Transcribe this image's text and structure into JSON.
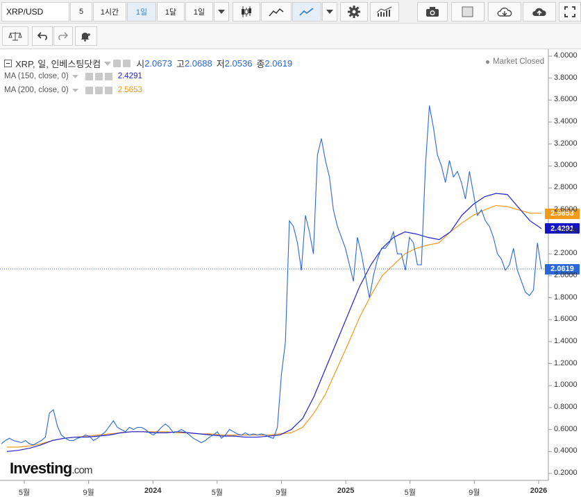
{
  "toolbar": {
    "symbol": "XRP/USD",
    "intervals": [
      "5",
      "1시간",
      "1일",
      "1달",
      "1일"
    ],
    "active_interval_index": 2,
    "icons": [
      "dropdown-icon",
      "candlestick-icon",
      "mountain-icon",
      "line-chart-icon",
      "dropdown-icon",
      "gear-icon",
      "indicators-icon",
      "camera-icon",
      "color-box-icon",
      "dropdown-icon",
      "cloud-download-icon",
      "cloud-upload-icon",
      "fullscreen-icon"
    ]
  },
  "toolbar2": {
    "icons": [
      "balance-scale-icon",
      "undo-icon",
      "redo-icon",
      "alert-bell-icon"
    ]
  },
  "legend": {
    "main_title": "XRP, 일, 인베스팅닷컴",
    "open_label": "시",
    "open_value": "2.0673",
    "high_label": "고",
    "high_value": "2.0688",
    "low_label": "저",
    "low_value": "2.0536",
    "close_label": "종",
    "close_value": "2.0619",
    "ma150_label": "MA (150, close, 0)",
    "ma150_value": "2.4291",
    "ma200_label": "MA (200, close, 0)",
    "ma200_value": "2.5653",
    "market_status": "Market Closed"
  },
  "brand": "Investing",
  "brand_suffix": ".com",
  "colors": {
    "price_line": "#2a67d8",
    "ma150": "#1f1fd1",
    "ma200": "#f39a1a",
    "last_price_tag": "#2a67d8",
    "ma150_tag": "#1414c8",
    "ma200_tag": "#f39a1a"
  },
  "chart_data": {
    "type": "line",
    "y_ticks": [
      "4.0000",
      "3.8000",
      "3.6000",
      "3.4000",
      "3.2000",
      "3.0000",
      "2.8000",
      "2.6000",
      "2.4000",
      "2.2000",
      "2.0000",
      "1.8000",
      "1.6000",
      "1.4000",
      "1.2000",
      "1.0000",
      "0.8000",
      "0.6000",
      "0.4000",
      "0.2000"
    ],
    "ylim": [
      0.2,
      4.0
    ],
    "x_ticks": [
      "5월",
      "9월",
      "2024",
      "5월",
      "9월",
      "2025",
      "5월",
      "9월",
      "2026"
    ],
    "last_price": "2.0619",
    "ma150_last": "2.4291",
    "ma200_last": "2.5653",
    "series": [
      {
        "name": "XRP",
        "values": [
          0.47,
          0.5,
          0.52,
          0.5,
          0.49,
          0.48,
          0.5,
          0.47,
          0.46,
          0.48,
          0.5,
          0.53,
          0.75,
          0.78,
          0.63,
          0.55,
          0.52,
          0.5,
          0.5,
          0.52,
          0.53,
          0.55,
          0.54,
          0.5,
          0.52,
          0.55,
          0.58,
          0.63,
          0.68,
          0.62,
          0.6,
          0.58,
          0.62,
          0.6,
          0.62,
          0.62,
          0.6,
          0.57,
          0.55,
          0.58,
          0.62,
          0.65,
          0.62,
          0.57,
          0.58,
          0.6,
          0.58,
          0.55,
          0.52,
          0.5,
          0.48,
          0.5,
          0.53,
          0.55,
          0.58,
          0.52,
          0.55,
          0.6,
          0.58,
          0.56,
          0.55,
          0.57,
          0.55,
          0.56,
          0.55,
          0.56,
          0.55,
          0.53,
          0.52,
          0.62,
          1.1,
          1.4,
          2.5,
          2.45,
          2.3,
          2.05,
          2.55,
          2.4,
          2.2,
          3.1,
          3.25,
          3.05,
          2.9,
          2.6,
          2.45,
          2.35,
          2.25,
          2.1,
          1.95,
          2.35,
          2.2,
          2.0,
          1.8,
          2.0,
          2.15,
          2.25,
          2.25,
          2.3,
          2.4,
          2.2,
          2.2,
          2.05,
          2.35,
          2.3,
          2.1,
          2.1,
          3.0,
          3.55,
          3.35,
          3.1,
          3.0,
          2.85,
          3.05,
          2.9,
          2.95,
          2.85,
          2.7,
          2.95,
          2.75,
          2.55,
          2.6,
          2.5,
          2.45,
          2.35,
          2.2,
          2.15,
          2.05,
          2.1,
          2.25,
          2.05,
          1.95,
          1.85,
          1.82,
          1.87,
          2.3,
          2.06
        ]
      },
      {
        "name": "MA (150, close, 0)",
        "values": [
          0.4,
          0.41,
          0.43,
          0.46,
          0.5,
          0.52,
          0.53,
          0.53,
          0.54,
          0.55,
          0.57,
          0.58,
          0.58,
          0.57,
          0.57,
          0.58,
          0.57,
          0.56,
          0.55,
          0.54,
          0.54,
          0.53,
          0.53,
          0.54,
          0.55,
          0.6,
          0.7,
          0.9,
          1.15,
          1.4,
          1.65,
          1.9,
          2.1,
          2.25,
          2.35,
          2.4,
          2.38,
          2.35,
          2.33,
          2.4,
          2.55,
          2.65,
          2.72,
          2.75,
          2.74,
          2.62,
          2.5,
          2.43
        ]
      },
      {
        "name": "MA (200, close, 0)",
        "values": [
          0.44,
          0.44,
          0.45,
          0.47,
          0.5,
          0.52,
          0.53,
          0.54,
          0.55,
          0.56,
          0.57,
          0.58,
          0.58,
          0.58,
          0.58,
          0.57,
          0.57,
          0.56,
          0.56,
          0.55,
          0.55,
          0.55,
          0.55,
          0.55,
          0.56,
          0.57,
          0.62,
          0.75,
          0.92,
          1.15,
          1.38,
          1.62,
          1.82,
          2.0,
          2.1,
          2.2,
          2.25,
          2.28,
          2.3,
          2.4,
          2.48,
          2.55,
          2.6,
          2.64,
          2.63,
          2.6,
          2.57,
          2.57
        ]
      }
    ]
  }
}
